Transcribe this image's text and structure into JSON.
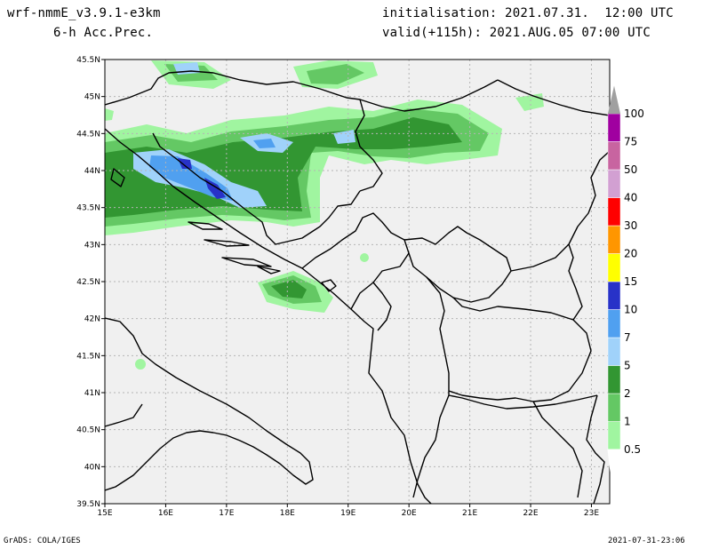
{
  "header": {
    "model": "wrf-nmmE_v3.9.1-e3km",
    "field": "6-h Acc.Prec.",
    "init": "initialisation: 2021.07.31.  12:00 UTC",
    "valid": "valid(+115h): 2021.AUG.05 07:00 UTC"
  },
  "footer": {
    "credit": "GrADS: COLA/IGES",
    "timestamp": "2021-07-31-23:06"
  },
  "map": {
    "lon_ticks": [
      "15E",
      "16E",
      "17E",
      "18E",
      "19E",
      "20E",
      "21E",
      "22E",
      "23E"
    ],
    "lat_ticks": [
      "45.5N",
      "45N",
      "44.5N",
      "44N",
      "43.5N",
      "43N",
      "42.5N",
      "42N",
      "41.5N",
      "41N",
      "40.5N",
      "40N",
      "39.5N"
    ],
    "lon_range": [
      15,
      23.3
    ],
    "lat_range": [
      39.5,
      45.5
    ]
  },
  "legend": {
    "title": "",
    "units": "",
    "levels": [
      {
        "label": "0.5",
        "color": "#a0f5a0"
      },
      {
        "label": "1",
        "color": "#64c864"
      },
      {
        "label": "2",
        "color": "#329632"
      },
      {
        "label": "5",
        "color": "#a0d2fa"
      },
      {
        "label": "7",
        "color": "#50a0f0"
      },
      {
        "label": "10",
        "color": "#2832c8"
      },
      {
        "label": "15",
        "color": "#ffff00"
      },
      {
        "label": "20",
        "color": "#ff9600"
      },
      {
        "label": "30",
        "color": "#ff0000"
      },
      {
        "label": "40",
        "color": "#d2a0d2"
      },
      {
        "label": "50",
        "color": "#c864a0"
      },
      {
        "label": "75",
        "color": "#a000a0"
      },
      {
        "label": "100",
        "color": "#a0a0a0"
      }
    ]
  },
  "colors": {
    "land": "#f0f0f0",
    "coast": "#000000",
    "grid": "#b4b4b4"
  }
}
